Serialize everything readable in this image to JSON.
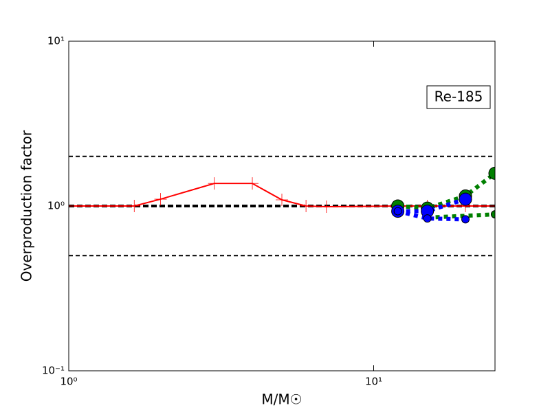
{
  "chart_data": {
    "type": "line",
    "xlabel": "M/M☉",
    "ylabel": "Overproduction factor",
    "annotation": "Re-185",
    "log_x": true,
    "log_y": true,
    "xlim": [
      1,
      25
    ],
    "ylim": [
      0.1,
      10
    ],
    "xticks": [
      {
        "value": 1,
        "label": "10⁰"
      },
      {
        "value": 10,
        "label": "10¹"
      }
    ],
    "yticks": [
      {
        "value": 0.1,
        "label": "10⁻¹"
      },
      {
        "value": 1,
        "label": "10⁰"
      },
      {
        "value": 10,
        "label": "10¹"
      }
    ],
    "hlines": [
      2,
      1,
      0.5
    ],
    "series": [
      {
        "color": "#ff0000",
        "marker": "plus",
        "linestyle": "solid",
        "x": [
          1,
          1.64,
          2,
          3,
          4,
          5,
          6,
          7,
          12,
          15,
          20,
          25
        ],
        "values": [
          1.0,
          1.0,
          1.1,
          1.37,
          1.37,
          1.09,
          1.0,
          0.99,
          1.0,
          1.0,
          1.0,
          1.0
        ]
      },
      {
        "color": "#008000",
        "marker": "circle-big",
        "linestyle": "dotted",
        "x": [
          12,
          15,
          20,
          25
        ],
        "values": [
          1.0,
          0.97,
          1.15,
          1.58
        ]
      },
      {
        "color": "#008000",
        "marker": "circle-small",
        "linestyle": "dotted",
        "x": [
          15,
          25
        ],
        "values": [
          0.85,
          0.89
        ]
      },
      {
        "color": "#0000ff",
        "marker": "circle-big",
        "linestyle": "dotted",
        "x": [
          12,
          15,
          20
        ],
        "values": [
          0.93,
          0.93,
          1.1
        ]
      },
      {
        "color": "#0000ff",
        "marker": "circle-small",
        "linestyle": "dotted",
        "x": [
          12,
          15,
          20
        ],
        "values": [
          0.93,
          0.84,
          0.83
        ]
      }
    ]
  }
}
